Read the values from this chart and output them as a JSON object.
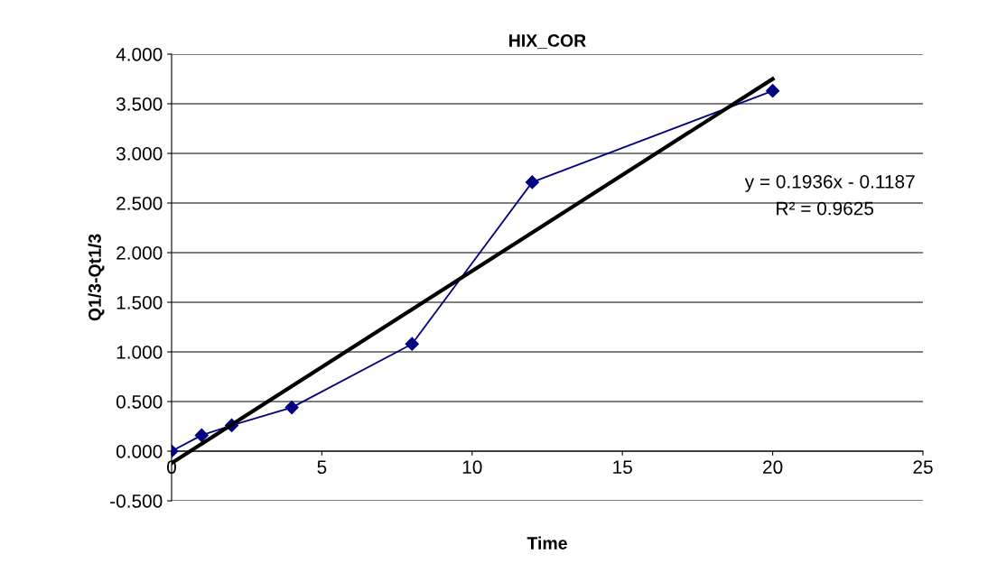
{
  "chart_data": {
    "type": "line",
    "title": "HIX_COR",
    "xlabel": "Time",
    "ylabel": "Q1/3-Qt1/3",
    "series": [
      {
        "color": "#000080",
        "marker": "diamond",
        "x": [
          0,
          1,
          2,
          4,
          8,
          12,
          20
        ],
        "values": [
          0.0,
          0.16,
          0.26,
          0.44,
          1.08,
          2.71,
          3.63
        ]
      },
      {
        "color": "#000000",
        "marker": "none",
        "x": [
          0,
          20
        ],
        "values": [
          -0.12,
          3.75
        ]
      }
    ],
    "xlim": [
      0,
      25
    ],
    "xticks": [
      0,
      5,
      10,
      15,
      20,
      25
    ],
    "ylim": [
      -0.5,
      4.0
    ],
    "yticks": [
      {
        "value": -0.5,
        "label": "-0.500"
      },
      {
        "value": 0,
        "label": "0.000"
      },
      {
        "value": 0.5,
        "label": "0.500"
      },
      {
        "value": 1.0,
        "label": "1.000"
      },
      {
        "value": 1.5,
        "label": "1.500"
      },
      {
        "value": 2.0,
        "label": "2.000"
      },
      {
        "value": 2.5,
        "label": "2.500"
      },
      {
        "value": 3.0,
        "label": "3.000"
      },
      {
        "value": 3.5,
        "label": "3.500"
      },
      {
        "value": 4.0,
        "label": "4.000"
      }
    ],
    "grid": "y",
    "legend": false,
    "annotations": [
      "y = 0.1936x - 0.1187",
      "R² = 0.9625"
    ]
  }
}
